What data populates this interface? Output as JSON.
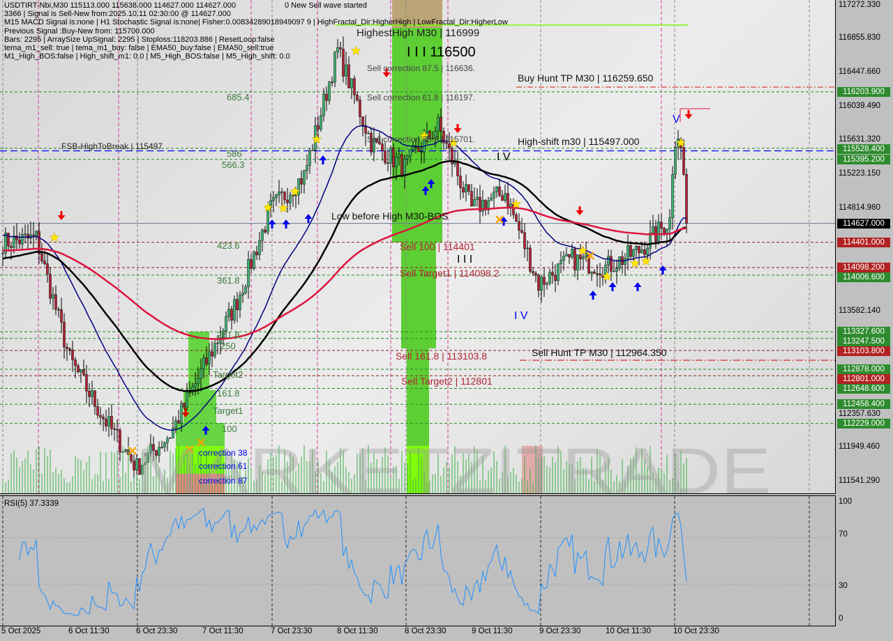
{
  "header": {
    "symbol_line": "USDTIRT-Nbi,M30  115113.000 115638.000 114627.000 114627.000",
    "wave_status": "0 New Sell wave started",
    "info_lines": [
      "3366 | Signal is Sell-New from:2025.10.11 02:30:00 @ 114627.000",
      "M15 MACD Signal is:none | H1 Stochastic Signal is:none| Fisher:0.00834289018949097 9 | HighFractal_Dir:HigherHigh | LowFractal_Dir:HigherLow",
      "Previous Signal :Buy-New from: 115700.000",
      "Bars: 2295 | ArraySize UpSignal: 2295 | Stoploss:118203.886 | ResetLoop:false",
      "tema_m1_sell: true | tema_m1_buy: false | EMA50_buy:false | EMA50_sell:true",
      "M1_High_BOS:false | High_shift_m1: 0.0 | M5_High_BOS:false | M5_High_shift: 0.0"
    ]
  },
  "watermark": "MARKETZITRADE",
  "labels": {
    "fsb": "FSB-HighToBreak | 115497",
    "fib_685": "685.4",
    "fib_586": "586",
    "fib_566": "566.3",
    "fib_423": "423.6",
    "fib_361": "361.8",
    "fib_261": "261.8",
    "fib_250": "250",
    "target2": "Target2",
    "fib_161": "161.8",
    "target1": "Target1",
    "fib_100": "100",
    "corr38": "correction 38",
    "corr61": "correction 61",
    "corr87": "correction 87",
    "highest_high": "HighestHigh   M30 | 116999",
    "sell_corr_875": "Sell correction 87.5 | 116636.",
    "wave_116500": "I I I 116500",
    "sell_corr_618": "Sell correction 61.8 | 116197.",
    "sell_corr_382": "Sell correction 38.2 | 115701.",
    "buy_hunt_tp": "Buy Hunt TP M30 | 116259.650",
    "high_shift": "High-shift m30 | 115497.000",
    "wave_iv_a": "I V",
    "wave_v": "V",
    "wave_iii": "I I I",
    "wave_iv_b": "I V",
    "low_before_high": "Low before High    M30-BOS",
    "sell_100": "Sell 100 | 114401",
    "sell_target1": "Sell Target1 | 114098.2",
    "sell_161": "Sell 161.8 | 113103.8",
    "sell_target2": "Sell Target2 | 112801",
    "sell_hunt_tp": "Sell Hunt TP M30 | 112964.350"
  },
  "price_axis": {
    "ticks": [
      "117272.330",
      "116855.830",
      "116447.660",
      "116039.490",
      "115631.320",
      "115223.150",
      "114814.980",
      "113582.140",
      "112357.630",
      "111949.460",
      "111541.290"
    ],
    "tags": [
      {
        "value": "116203.900",
        "color": "#2e8b2e"
      },
      {
        "value": "115528.400",
        "color": "#2e8b2e"
      },
      {
        "value": "115395.200",
        "color": "#2e8b2e"
      },
      {
        "value": "114627.000",
        "color": "#000000"
      },
      {
        "value": "114401.000",
        "color": "#b22222"
      },
      {
        "value": "114006.600",
        "color": "#2e8b2e"
      },
      {
        "value": "114098.200",
        "color": "#b22222"
      },
      {
        "value": "113247.500",
        "color": "#2e8b2e"
      },
      {
        "value": "113327.600",
        "color": "#2e8b2e"
      },
      {
        "value": "113103.800",
        "color": "#b22222"
      },
      {
        "value": "112878.000",
        "color": "#2e8b2e"
      },
      {
        "value": "112801.000",
        "color": "#b22222"
      },
      {
        "value": "112648.600",
        "color": "#2e8b2e"
      },
      {
        "value": "112458.400",
        "color": "#2e8b2e"
      },
      {
        "value": "112229.000",
        "color": "#2e8b2e"
      }
    ]
  },
  "rsi": {
    "label": "RSI(5) 37.3339",
    "ticks": [
      "100",
      "70",
      "30",
      "0"
    ],
    "line_color": "#1e90ff"
  },
  "time_axis": [
    "5 Oct 2025",
    "6 Oct 11:30",
    "6 Oct 23:30",
    "7 Oct 11:30",
    "7 Oct 23:30",
    "8 Oct 11:30",
    "8 Oct 23:30",
    "9 Oct 11:30",
    "9 Oct 23:30",
    "10 Oct 11:30",
    "10 Oct 23:30"
  ],
  "chart_data": {
    "type": "candlestick",
    "timeframe": "M30",
    "ylim": [
      111541.29,
      117272.33
    ],
    "approx_close_every_12_bars": [
      114400,
      114450,
      113000,
      112300,
      111700,
      112100,
      112900,
      113700,
      114800,
      115200,
      116700,
      115600,
      115300,
      115800,
      114800,
      115000,
      113900,
      114200,
      114100,
      114300,
      114700
    ],
    "last_close": 114627,
    "colors": {
      "bull": "#3cb371",
      "bear": "#b22234",
      "ema_fast": "#000080",
      "ema_mid": "#000000",
      "ema_slow": "#dc143c"
    }
  }
}
